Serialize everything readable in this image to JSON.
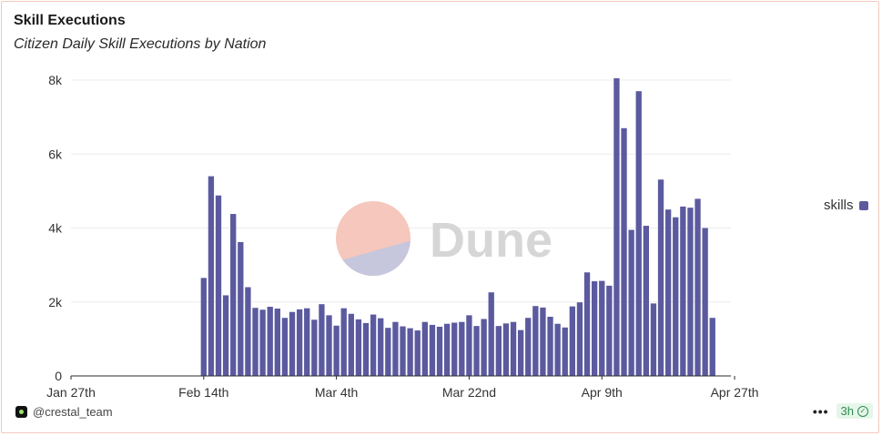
{
  "card": {
    "title": "Skill Executions",
    "subtitle": "Citizen Daily Skill Executions by Nation",
    "author": "@crestal_team",
    "refresh_label": "3h",
    "more_label": "•••"
  },
  "watermark": {
    "text": "Dune"
  },
  "colors": {
    "bar": "#5b5a9f",
    "grid": "#ececec",
    "axis": "#2b2b2b",
    "tick_text": "#333333",
    "watermark_top": "#f6c7bc",
    "watermark_bottom": "#c6c6dd",
    "watermark_text": "#d6d6d6"
  },
  "chart_data": {
    "type": "bar",
    "title": "Skill Executions",
    "subtitle": "Citizen Daily Skill Executions by Nation",
    "xlabel": "",
    "ylabel": "",
    "ylim": [
      0,
      8000
    ],
    "yticks": [
      0,
      2000,
      4000,
      6000,
      8000
    ],
    "ytick_labels": [
      "0",
      "2k",
      "4k",
      "6k",
      "8k"
    ],
    "xtick_labels": [
      "Jan 27th",
      "Feb 14th",
      "Mar 4th",
      "Mar 22nd",
      "Apr 9th",
      "Apr 27th"
    ],
    "xtick_day_index": [
      0,
      18,
      36,
      54,
      72,
      90
    ],
    "start_date": "Jan 27th",
    "end_date": "Apr 27th",
    "grid": true,
    "legend_position": "right",
    "series": [
      {
        "name": "skills",
        "start_day_index": 18,
        "values": [
          2650,
          5400,
          4880,
          2180,
          4380,
          3620,
          2400,
          1840,
          1790,
          1870,
          1820,
          1570,
          1730,
          1800,
          1830,
          1520,
          1940,
          1640,
          1360,
          1830,
          1680,
          1530,
          1430,
          1660,
          1560,
          1300,
          1460,
          1340,
          1290,
          1230,
          1460,
          1380,
          1330,
          1410,
          1440,
          1460,
          1640,
          1350,
          1540,
          2260,
          1350,
          1420,
          1460,
          1240,
          1570,
          1890,
          1850,
          1600,
          1410,
          1310,
          1880,
          1990,
          2800,
          2560,
          2570,
          2440,
          8050,
          6700,
          3950,
          7700,
          4060,
          1960,
          5310,
          4500,
          4290,
          4580,
          4550,
          4790,
          4000,
          1570
        ]
      }
    ]
  }
}
